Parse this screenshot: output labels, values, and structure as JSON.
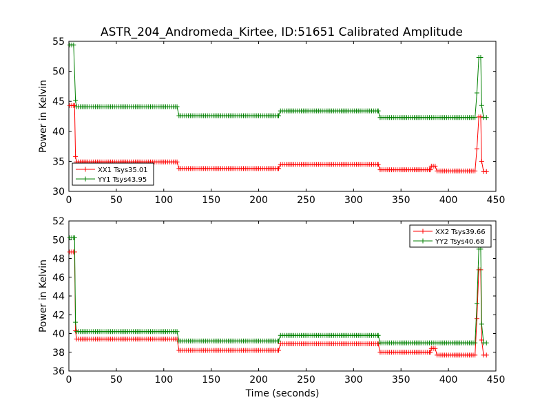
{
  "figure": {
    "title": "ASTR_204_Andromeda_Kirtee, ID:51651 Calibrated Amplitude"
  },
  "chart_data": [
    {
      "type": "line",
      "title": "ASTR_204_Andromeda_Kirtee, ID:51651 Calibrated Amplitude",
      "xlabel": "",
      "ylabel": "Power in Kelvin",
      "xlim": [
        0,
        450
      ],
      "ylim": [
        30,
        55
      ],
      "xticks": [
        0,
        50,
        100,
        150,
        200,
        250,
        300,
        350,
        400,
        450
      ],
      "yticks": [
        30,
        35,
        40,
        45,
        50,
        55
      ],
      "grid": false,
      "legend_position": "lower-left",
      "marker": "+",
      "series": [
        {
          "name": "XX1 Tsys35.01",
          "color": "#ff0000",
          "segments": [
            {
              "x0": 1,
              "x1": 6,
              "y": 44.3
            },
            {
              "x0": 7,
              "x1": 7,
              "y": 35.8
            },
            {
              "x0": 8,
              "x1": 114,
              "y": 34.9
            },
            {
              "x0": 116,
              "x1": 221,
              "y": 33.8
            },
            {
              "x0": 223,
              "x1": 326,
              "y": 34.5
            },
            {
              "x0": 328,
              "x1": 381,
              "y": 33.6
            },
            {
              "x0": 382,
              "x1": 386,
              "y": 34.2
            },
            {
              "x0": 388,
              "x1": 428,
              "y": 33.4
            }
          ],
          "points": [
            [
              430,
              37.1
            ],
            [
              432,
              42.4
            ],
            [
              434,
              42.4
            ],
            [
              435,
              35.0
            ],
            [
              437,
              33.3
            ],
            [
              440,
              33.3
            ]
          ]
        },
        {
          "name": "YY1 Tsys43.95",
          "color": "#008000",
          "segments": [
            {
              "x0": 1,
              "x1": 5,
              "y": 54.4
            },
            {
              "x0": 7,
              "x1": 7,
              "y": 45.2
            },
            {
              "x0": 8,
              "x1": 114,
              "y": 44.1
            },
            {
              "x0": 116,
              "x1": 221,
              "y": 42.6
            },
            {
              "x0": 223,
              "x1": 326,
              "y": 43.4
            },
            {
              "x0": 328,
              "x1": 428,
              "y": 42.3
            }
          ],
          "points": [
            [
              430,
              46.4
            ],
            [
              432,
              52.3
            ],
            [
              434,
              52.3
            ],
            [
              435,
              44.3
            ],
            [
              437,
              42.3
            ],
            [
              440,
              42.3
            ]
          ]
        }
      ]
    },
    {
      "type": "line",
      "title": "",
      "xlabel": "Time (seconds)",
      "ylabel": "Power in Kelvin",
      "xlim": [
        0,
        450
      ],
      "ylim": [
        36,
        52
      ],
      "xticks": [
        0,
        50,
        100,
        150,
        200,
        250,
        300,
        350,
        400,
        450
      ],
      "yticks": [
        36,
        38,
        40,
        42,
        44,
        46,
        48,
        50,
        52
      ],
      "grid": false,
      "legend_position": "upper-right",
      "marker": "+",
      "series": [
        {
          "name": "XX2 Tsys39.66",
          "color": "#ff0000",
          "segments": [
            {
              "x0": 1,
              "x1": 6,
              "y": 48.7
            },
            {
              "x0": 7,
              "x1": 7,
              "y": 40.3
            },
            {
              "x0": 8,
              "x1": 114,
              "y": 39.4
            },
            {
              "x0": 116,
              "x1": 221,
              "y": 38.2
            },
            {
              "x0": 223,
              "x1": 326,
              "y": 38.9
            },
            {
              "x0": 328,
              "x1": 381,
              "y": 38.0
            },
            {
              "x0": 382,
              "x1": 386,
              "y": 38.4
            },
            {
              "x0": 388,
              "x1": 428,
              "y": 37.7
            }
          ],
          "points": [
            [
              430,
              41.6
            ],
            [
              432,
              46.8
            ],
            [
              434,
              46.8
            ],
            [
              435,
              39.3
            ],
            [
              437,
              37.7
            ],
            [
              440,
              37.7
            ]
          ]
        },
        {
          "name": "YY2 Tsys40.68",
          "color": "#008000",
          "segments": [
            {
              "x0": 1,
              "x1": 6,
              "y": 50.2
            },
            {
              "x0": 7,
              "x1": 7,
              "y": 41.2
            },
            {
              "x0": 8,
              "x1": 114,
              "y": 40.2
            },
            {
              "x0": 116,
              "x1": 221,
              "y": 39.2
            },
            {
              "x0": 223,
              "x1": 326,
              "y": 39.8
            },
            {
              "x0": 328,
              "x1": 428,
              "y": 39.0
            }
          ],
          "points": [
            [
              430,
              43.2
            ],
            [
              432,
              49.0
            ],
            [
              434,
              49.0
            ],
            [
              435,
              41.0
            ],
            [
              437,
              39.0
            ],
            [
              440,
              39.0
            ]
          ]
        }
      ]
    }
  ]
}
